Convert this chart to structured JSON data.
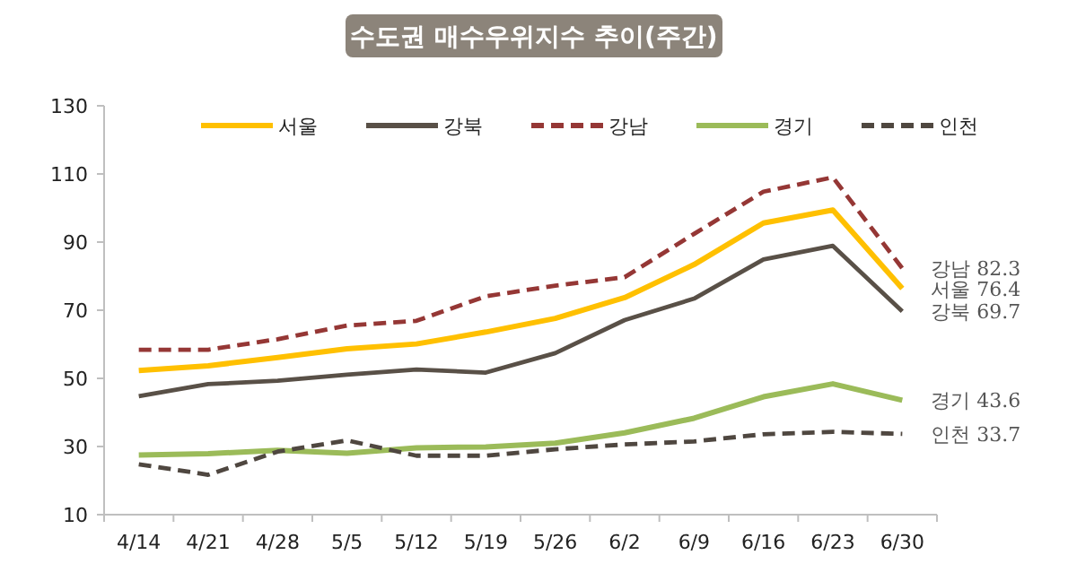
{
  "chart_data": {
    "type": "line",
    "title": "수도권 매수우위지수 추이(주간)",
    "categories": [
      "4/14",
      "4/21",
      "4/28",
      "5/5",
      "5/12",
      "5/19",
      "5/26",
      "6/2",
      "6/9",
      "6/16",
      "6/23",
      "6/30"
    ],
    "ylim": [
      10,
      130
    ],
    "yticks": [
      10,
      30,
      50,
      70,
      90,
      110,
      130
    ],
    "grid": false,
    "legend": "top",
    "marker": "none",
    "series": [
      {
        "name": "서울",
        "color": "#ffc000",
        "line_style": "solid",
        "values": [
          52.3,
          53.7,
          56.1,
          58.7,
          60.1,
          63.6,
          67.6,
          73.7,
          83.4,
          95.6,
          99.4,
          76.4
        ]
      },
      {
        "name": "강북",
        "color": "#595047",
        "line_style": "solid",
        "values": [
          44.8,
          48.3,
          49.3,
          51.1,
          52.6,
          51.7,
          57.4,
          67.1,
          73.4,
          84.9,
          88.9,
          69.7
        ]
      },
      {
        "name": "강남",
        "color": "#953735",
        "line_style": "dashed",
        "values": [
          58.4,
          58.4,
          61.5,
          65.5,
          66.9,
          74.1,
          77.2,
          79.7,
          92.4,
          104.8,
          109.0,
          82.3
        ]
      },
      {
        "name": "경기",
        "color": "#9bbb59",
        "line_style": "solid",
        "values": [
          27.5,
          27.9,
          28.9,
          28.0,
          29.6,
          29.9,
          31.0,
          34.0,
          38.3,
          44.6,
          48.4,
          43.6
        ]
      },
      {
        "name": "인천",
        "color": "#4f4740",
        "line_style": "dashed",
        "values": [
          24.8,
          21.7,
          28.5,
          31.8,
          27.3,
          27.3,
          29.2,
          30.6,
          31.5,
          33.6,
          34.3,
          33.7
        ]
      }
    ],
    "annotations": [
      {
        "text": "강남 82.3",
        "x": "6/30",
        "y": 82.3
      },
      {
        "text": "서울 76.4",
        "x": "6/30",
        "y": 76.4
      },
      {
        "text": "강북 69.7",
        "x": "6/30",
        "y": 69.7
      },
      {
        "text": "경기 43.6",
        "x": "6/30",
        "y": 43.6
      },
      {
        "text": "인천 33.7",
        "x": "6/30",
        "y": 33.7
      }
    ]
  }
}
